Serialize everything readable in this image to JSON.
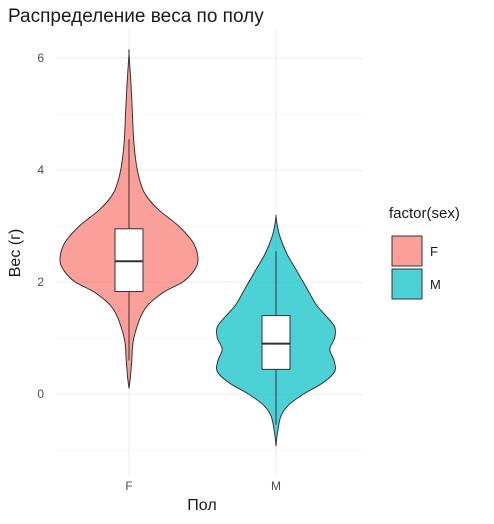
{
  "chart_data": {
    "type": "violin",
    "title": "Распределение веса по полу",
    "xlabel": "Пол",
    "ylabel": "Вес (г)",
    "categories": [
      "F",
      "M"
    ],
    "ylim": [
      -1.0,
      6.5
    ],
    "yticks": [
      0,
      2,
      4,
      6
    ],
    "grid": true,
    "legend": {
      "title": "factor(sex)",
      "position": "right",
      "entries": [
        {
          "label": "F",
          "color": "#F8766D"
        },
        {
          "label": "M",
          "color": "#00BFC4"
        }
      ]
    },
    "series": [
      {
        "name": "F",
        "color": "#F8766D",
        "boxplot": {
          "whisker_low": 0.6,
          "q1": 1.83,
          "median": 2.37,
          "q3": 2.95,
          "whisker_high": 4.55
        },
        "density_range": [
          0.1,
          6.08
        ],
        "density_profile": [
          [
            0.1,
            0.0
          ],
          [
            0.3,
            0.02
          ],
          [
            0.6,
            0.04
          ],
          [
            1.0,
            0.07
          ],
          [
            1.5,
            0.22
          ],
          [
            1.8,
            0.48
          ],
          [
            2.0,
            0.78
          ],
          [
            2.2,
            0.94
          ],
          [
            2.4,
            1.0
          ],
          [
            2.7,
            0.93
          ],
          [
            3.0,
            0.72
          ],
          [
            3.3,
            0.42
          ],
          [
            3.6,
            0.22
          ],
          [
            4.0,
            0.12
          ],
          [
            4.5,
            0.07
          ],
          [
            5.0,
            0.05
          ],
          [
            5.5,
            0.03
          ],
          [
            6.08,
            0.0
          ]
        ]
      },
      {
        "name": "M",
        "color": "#00BFC4",
        "boxplot": {
          "whisker_low": -0.55,
          "q1": 0.44,
          "median": 0.9,
          "q3": 1.4,
          "whisker_high": 2.55
        },
        "density_range": [
          -0.93,
          3.17
        ],
        "density_profile": [
          [
            -0.93,
            0.0
          ],
          [
            -0.7,
            0.02
          ],
          [
            -0.4,
            0.07
          ],
          [
            -0.2,
            0.18
          ],
          [
            0.0,
            0.4
          ],
          [
            0.2,
            0.68
          ],
          [
            0.4,
            0.85
          ],
          [
            0.6,
            0.84
          ],
          [
            0.8,
            0.78
          ],
          [
            1.0,
            0.85
          ],
          [
            1.2,
            0.85
          ],
          [
            1.4,
            0.72
          ],
          [
            1.6,
            0.58
          ],
          [
            1.9,
            0.44
          ],
          [
            2.2,
            0.3
          ],
          [
            2.5,
            0.16
          ],
          [
            2.8,
            0.06
          ],
          [
            3.0,
            0.02
          ],
          [
            3.17,
            0.0
          ]
        ]
      }
    ]
  }
}
